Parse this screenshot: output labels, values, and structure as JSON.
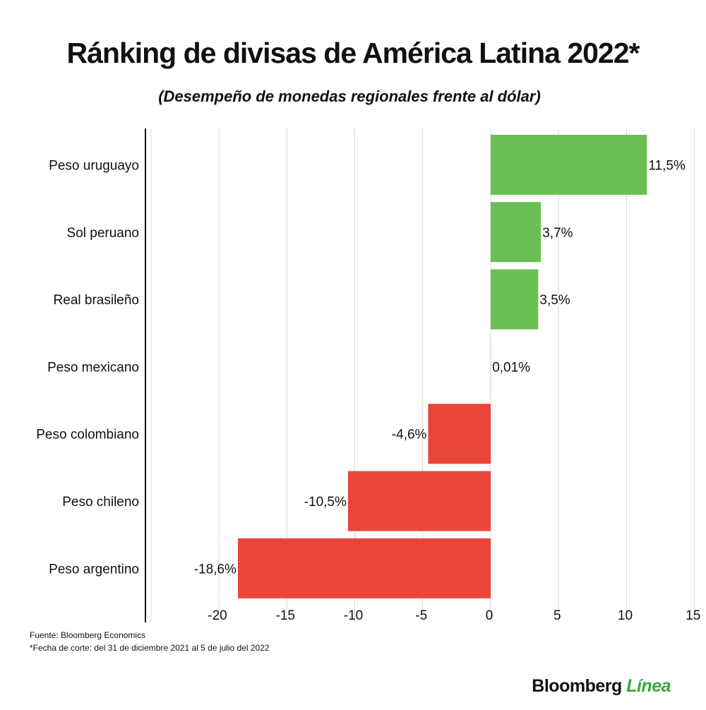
{
  "title": "Ránking de divisas de América Latina 2022*",
  "subtitle": "(Desempeño de monedas regionales frente al dólar)",
  "source": "Fuente: Bloomberg Economics",
  "note": "*Fecha de corte: del 31 de diciembre 2021 al 5 de julio del 2022",
  "logo": {
    "brand": "Bloomberg",
    "accent": "Línea"
  },
  "colors": {
    "positive": "#6abf53",
    "negative": "#ea453a",
    "grid": "#d8d8d8",
    "axis": "#111111"
  },
  "chart_data": {
    "type": "bar",
    "orientation": "horizontal",
    "categories": [
      "Peso uruguayo",
      "Sol peruano",
      "Real brasileño",
      "Peso mexicano",
      "Peso colombiano",
      "Peso chileno",
      "Peso argentino"
    ],
    "values": [
      11.5,
      3.7,
      3.5,
      0.01,
      -4.6,
      -10.5,
      -18.6
    ],
    "data_labels": [
      "11,5%",
      "3,7%",
      "3,5%",
      "0,01%",
      "-4,6%",
      "-10,5%",
      "-18,6%"
    ],
    "xlim": [
      -25,
      15
    ],
    "xticks": [
      -20,
      -15,
      -10,
      -5,
      0,
      5,
      10,
      15
    ],
    "xtick_labels": [
      "-20",
      "-15",
      "-10",
      "-5",
      "0",
      "5",
      "10",
      "15"
    ],
    "grid": true,
    "xlabel": "",
    "ylabel": ""
  }
}
